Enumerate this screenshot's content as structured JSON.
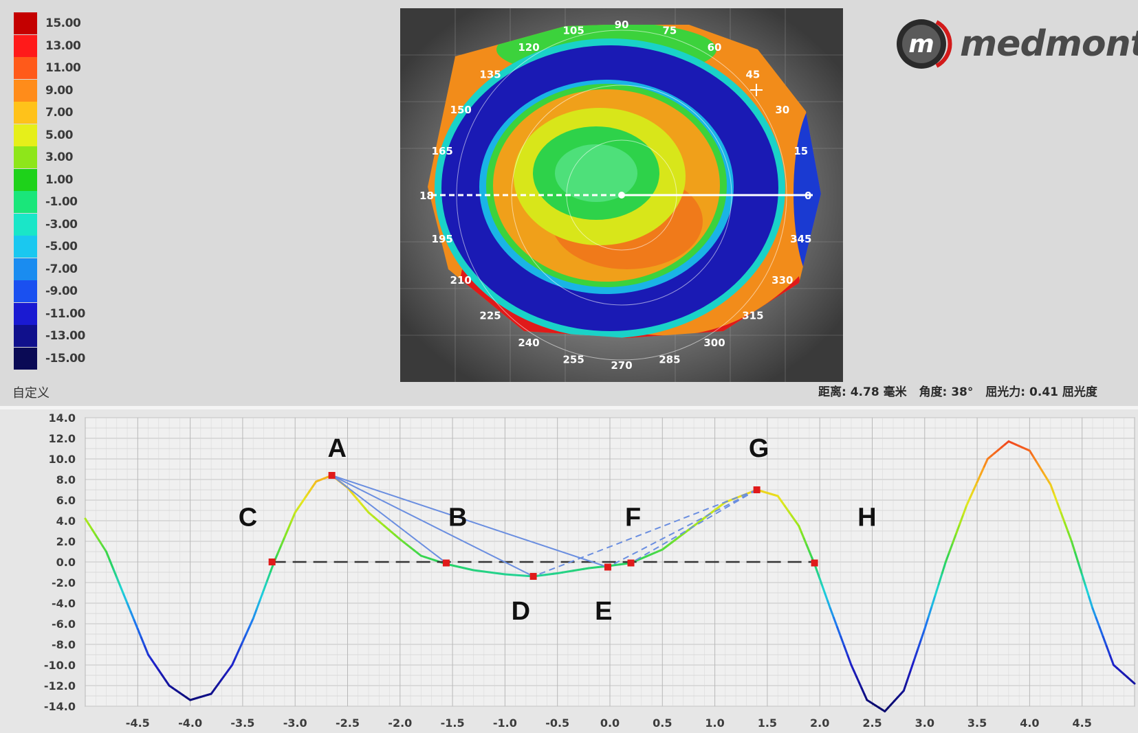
{
  "legend": {
    "levels": [
      {
        "label": "15.00",
        "color": "#c40000"
      },
      {
        "label": "13.00",
        "color": "#ff1a1a"
      },
      {
        "label": "11.00",
        "color": "#ff5a1a"
      },
      {
        "label": "9.00",
        "color": "#ff8c1a"
      },
      {
        "label": "7.00",
        "color": "#ffc21a"
      },
      {
        "label": "5.00",
        "color": "#e6ef1a"
      },
      {
        "label": "3.00",
        "color": "#8ee61a"
      },
      {
        "label": "1.00",
        "color": "#1ed21a"
      },
      {
        "label": "-1.00",
        "color": "#1ae67a"
      },
      {
        "label": "-3.00",
        "color": "#1ae6c8"
      },
      {
        "label": "-5.00",
        "color": "#1ac8f0"
      },
      {
        "label": "-7.00",
        "color": "#1a8cf0"
      },
      {
        "label": "-9.00",
        "color": "#1a50f0"
      },
      {
        "label": "-11.00",
        "color": "#1a1ad2"
      },
      {
        "label": "-13.00",
        "color": "#10108c"
      },
      {
        "label": "-15.00",
        "color": "#0a0a55"
      }
    ],
    "caption": "自定义"
  },
  "map": {
    "angles": [
      "90",
      "75",
      "60",
      "45",
      "30",
      "15",
      "0",
      "345",
      "330",
      "315",
      "300",
      "285",
      "270",
      "255",
      "240",
      "225",
      "210",
      "195",
      "180",
      "165",
      "150",
      "135",
      "120",
      "105"
    ],
    "center_label": "18",
    "right_label": "0",
    "bottom_label": "270"
  },
  "logo": {
    "letter": "m",
    "text": "medmont"
  },
  "readout": {
    "distance": "距离: 4.78 毫米",
    "angle": "角度: 38°",
    "power": "屈光力: 0.41 屈光度"
  },
  "chart_data": {
    "type": "line",
    "xlim": [
      -5.0,
      5.0
    ],
    "ylim": [
      -14.0,
      14.0
    ],
    "x_ticks": [
      "-4.5",
      "-4.0",
      "-3.5",
      "-3.0",
      "-2.5",
      "-2.0",
      "-1.5",
      "-1.0",
      "-0.5",
      "0.0",
      "0.5",
      "1.0",
      "1.5",
      "2.0",
      "2.5",
      "3.0",
      "3.5",
      "4.0",
      "4.5"
    ],
    "y_ticks": [
      "14.0",
      "12.0",
      "10.0",
      "8.0",
      "6.0",
      "4.0",
      "2.0",
      "0.0",
      "-2.0",
      "-4.0",
      "-6.0",
      "-8.0",
      "-10.0",
      "-12.0",
      "-14.0"
    ],
    "grid": true,
    "series": [
      {
        "values": [
          [
            -5.0,
            4.2
          ],
          [
            -4.8,
            1.0
          ],
          [
            -4.6,
            -4.0
          ],
          [
            -4.4,
            -9.0
          ],
          [
            -4.2,
            -12.0
          ],
          [
            -4.0,
            -13.4
          ],
          [
            -3.8,
            -12.8
          ],
          [
            -3.6,
            -10.0
          ],
          [
            -3.4,
            -5.5
          ],
          [
            -3.2,
            0.0
          ],
          [
            -3.0,
            4.8
          ],
          [
            -2.8,
            7.8
          ],
          [
            -2.65,
            8.4
          ],
          [
            -2.5,
            7.2
          ],
          [
            -2.3,
            4.8
          ],
          [
            -2.0,
            2.2
          ],
          [
            -1.8,
            0.6
          ],
          [
            -1.56,
            -0.2
          ],
          [
            -1.3,
            -0.8
          ],
          [
            -1.0,
            -1.2
          ],
          [
            -0.73,
            -1.4
          ],
          [
            -0.5,
            -1.1
          ],
          [
            -0.2,
            -0.6
          ],
          [
            -0.02,
            -0.4
          ],
          [
            0.2,
            -0.1
          ],
          [
            0.5,
            1.2
          ],
          [
            0.8,
            3.5
          ],
          [
            1.1,
            5.8
          ],
          [
            1.4,
            7.0
          ],
          [
            1.6,
            6.4
          ],
          [
            1.8,
            3.5
          ],
          [
            1.95,
            -0.2
          ],
          [
            2.1,
            -4.5
          ],
          [
            2.3,
            -10.0
          ],
          [
            2.45,
            -13.4
          ],
          [
            2.62,
            -14.5
          ],
          [
            2.8,
            -12.5
          ],
          [
            3.0,
            -6.5
          ],
          [
            3.2,
            0.0
          ],
          [
            3.4,
            5.5
          ],
          [
            3.6,
            10.0
          ],
          [
            3.8,
            11.7
          ],
          [
            4.0,
            10.8
          ],
          [
            4.2,
            7.5
          ],
          [
            4.4,
            2.0
          ],
          [
            4.6,
            -4.5
          ],
          [
            4.8,
            -10.0
          ],
          [
            5.0,
            -11.8
          ]
        ]
      }
    ],
    "markers": [
      {
        "x": -3.22,
        "y": 0.0
      },
      {
        "x": -2.65,
        "y": 8.4
      },
      {
        "x": -1.56,
        "y": -0.1
      },
      {
        "x": -0.73,
        "y": -1.4
      },
      {
        "x": -0.02,
        "y": -0.5
      },
      {
        "x": 0.2,
        "y": -0.1
      },
      {
        "x": 1.4,
        "y": 7.0
      },
      {
        "x": 1.95,
        "y": -0.1
      }
    ],
    "baseline": {
      "x_start": -3.22,
      "x_end": 1.95,
      "y": 0.0
    },
    "solid_lines": [
      {
        "from": [
          -2.65,
          8.4
        ],
        "to": [
          -1.56,
          -0.1
        ]
      },
      {
        "from": [
          -2.65,
          8.4
        ],
        "to": [
          -0.73,
          -1.4
        ]
      },
      {
        "from": [
          -2.65,
          8.4
        ],
        "to": [
          -0.02,
          -0.5
        ]
      }
    ],
    "dashed_lines": [
      {
        "from": [
          1.4,
          7.0
        ],
        "to": [
          -0.73,
          -1.4
        ]
      },
      {
        "from": [
          1.4,
          7.0
        ],
        "to": [
          -0.02,
          -0.5
        ]
      },
      {
        "from": [
          1.4,
          7.0
        ],
        "to": [
          0.2,
          -0.1
        ]
      }
    ],
    "annotations": [
      {
        "text": "A",
        "x": -2.6,
        "y": 10.2
      },
      {
        "text": "B",
        "x": -1.45,
        "y": 3.5
      },
      {
        "text": "C",
        "x": -3.45,
        "y": 3.5
      },
      {
        "text": "D",
        "x": -0.85,
        "y": -5.6
      },
      {
        "text": "E",
        "x": -0.06,
        "y": -5.6
      },
      {
        "text": "F",
        "x": 0.22,
        "y": 3.5
      },
      {
        "text": "G",
        "x": 1.42,
        "y": 10.2
      },
      {
        "text": "H",
        "x": 2.45,
        "y": 3.5
      }
    ]
  }
}
